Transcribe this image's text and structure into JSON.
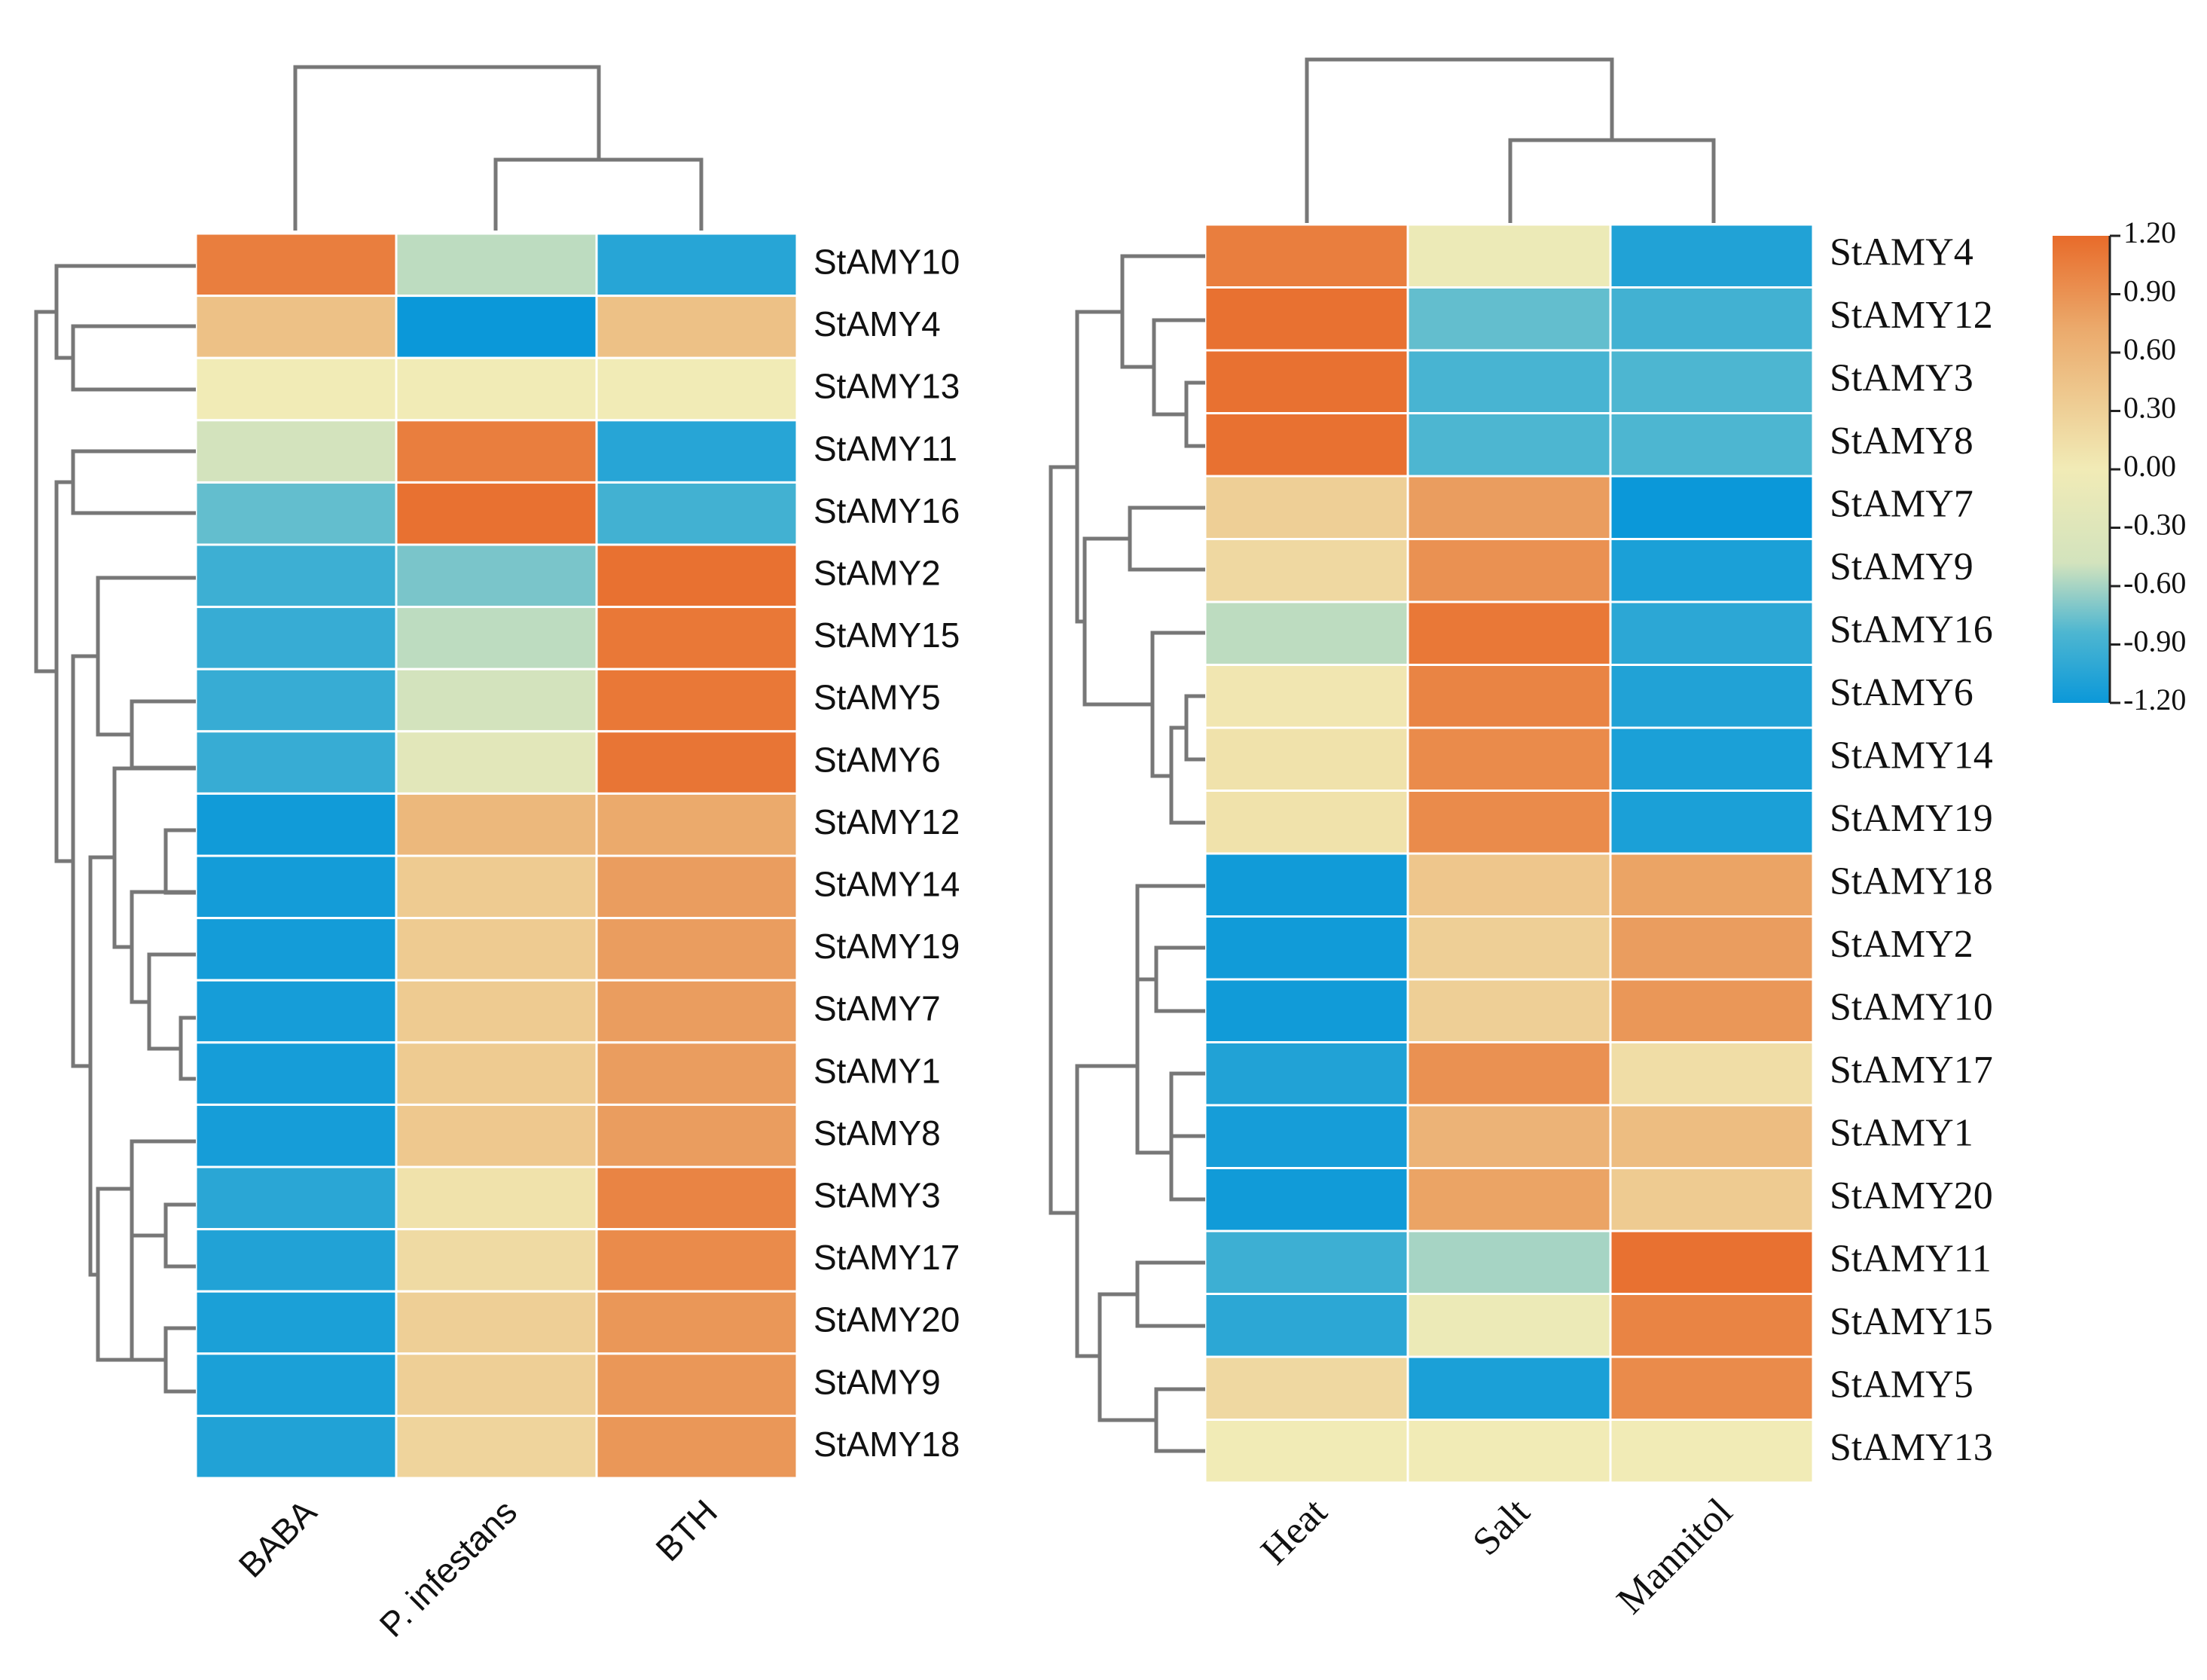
{
  "colors": {
    "scale": [
      "#0b98d9",
      "#4db6d1",
      "#d3e3bd",
      "#f1ebb6",
      "#ebaa6c",
      "#e86b2a"
    ],
    "grid": "#ffffff",
    "dendrogram": "#777777",
    "text": "#111111"
  },
  "chart_data": [
    {
      "type": "heatmap",
      "title": "",
      "columns": [
        "BABA",
        "P. infestans",
        "BTH"
      ],
      "rows": [
        "StAMY10",
        "StAMY4",
        "StAMY13",
        "StAMY11",
        "StAMY16",
        "StAMY2",
        "StAMY15",
        "StAMY5",
        "StAMY6",
        "StAMY12",
        "StAMY14",
        "StAMY19",
        "StAMY7",
        "StAMY1",
        "StAMY8",
        "StAMY3",
        "StAMY17",
        "StAMY20",
        "StAMY9",
        "StAMY18"
      ],
      "values": [
        [
          1.05,
          -0.35,
          -0.95
        ],
        [
          0.45,
          -1.2,
          0.45
        ],
        [
          0.0,
          0.0,
          0.0
        ],
        [
          -0.3,
          1.05,
          -0.95
        ],
        [
          -0.55,
          1.15,
          -0.7
        ],
        [
          -0.75,
          -0.5,
          1.15
        ],
        [
          -0.8,
          -0.35,
          1.1
        ],
        [
          -0.8,
          -0.3,
          1.1
        ],
        [
          -0.8,
          -0.15,
          1.12
        ],
        [
          -1.15,
          0.55,
          0.7
        ],
        [
          -1.12,
          0.35,
          0.8
        ],
        [
          -1.12,
          0.35,
          0.8
        ],
        [
          -1.1,
          0.35,
          0.8
        ],
        [
          -1.1,
          0.35,
          0.8
        ],
        [
          -1.1,
          0.38,
          0.8
        ],
        [
          -0.92,
          0.1,
          1.0
        ],
        [
          -1.0,
          0.18,
          0.95
        ],
        [
          -1.05,
          0.3,
          0.85
        ],
        [
          -1.05,
          0.3,
          0.85
        ],
        [
          -1.0,
          0.25,
          0.85
        ]
      ],
      "row_dendrogram_side": "left",
      "column_dendrogram_side": "top",
      "legend": "none"
    },
    {
      "type": "heatmap",
      "title": "",
      "columns": [
        "Heat",
        "Salt",
        "Mannitol"
      ],
      "rows": [
        "StAMY4",
        "StAMY12",
        "StAMY3",
        "StAMY8",
        "StAMY7",
        "StAMY9",
        "StAMY16",
        "StAMY6",
        "StAMY14",
        "StAMY19",
        "StAMY18",
        "StAMY2",
        "StAMY10",
        "StAMY17",
        "StAMY1",
        "StAMY20",
        "StAMY11",
        "StAMY15",
        "StAMY5",
        "StAMY13"
      ],
      "values": [
        [
          1.05,
          -0.05,
          -1.0
        ],
        [
          1.15,
          -0.55,
          -0.7
        ],
        [
          1.15,
          -0.65,
          -0.6
        ],
        [
          1.15,
          -0.6,
          -0.6
        ],
        [
          0.3,
          0.8,
          -1.2
        ],
        [
          0.2,
          0.9,
          -1.05
        ],
        [
          -0.35,
          1.1,
          -0.9
        ],
        [
          0.05,
          1.0,
          -1.0
        ],
        [
          0.1,
          0.95,
          -1.05
        ],
        [
          0.1,
          0.95,
          -1.05
        ],
        [
          -1.15,
          0.4,
          0.75
        ],
        [
          -1.15,
          0.3,
          0.8
        ],
        [
          -1.15,
          0.3,
          0.85
        ],
        [
          -1.0,
          0.9,
          0.15
        ],
        [
          -1.1,
          0.6,
          0.5
        ],
        [
          -1.15,
          0.75,
          0.35
        ],
        [
          -0.75,
          -0.4,
          1.15
        ],
        [
          -0.9,
          -0.05,
          1.0
        ],
        [
          0.2,
          -1.05,
          0.95
        ],
        [
          0.0,
          0.0,
          0.0
        ]
      ],
      "row_dendrogram_side": "left",
      "column_dendrogram_side": "top",
      "legend": "right"
    }
  ],
  "colorbar": {
    "ticks": [
      "1.20",
      "0.90",
      "0.60",
      "0.30",
      "0.00",
      "-0.30",
      "-0.60",
      "-0.90",
      "-1.20"
    ],
    "min": -1.2,
    "max": 1.2
  }
}
